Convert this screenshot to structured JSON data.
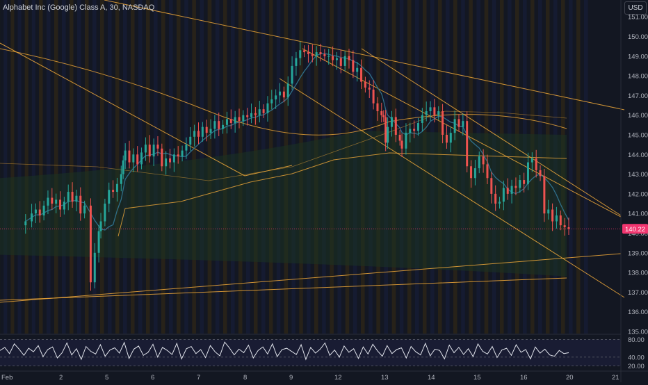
{
  "header": {
    "title": "Alphabet Inc (Google) Class A, 30, NASDAQ",
    "currency": "USD"
  },
  "colors": {
    "up": "#26a69a",
    "down": "#ef5350",
    "trendline": "#f0a93a",
    "ma": "#2f6f8a",
    "last_price_bg": "#f23670",
    "stripe_orange": "#2a2318",
    "stripe_blue": "#161c33",
    "rsi": "#e0e3eb"
  },
  "chart_data": [
    {
      "type": "candlestick",
      "title": "Alphabet Inc (Google) Class A, 30, NASDAQ",
      "y_unit": "USD",
      "ylim": [
        135,
        151.5
      ],
      "y_ticks": [
        "151.00",
        "150.00",
        "149.00",
        "148.00",
        "147.00",
        "146.00",
        "145.00",
        "144.00",
        "143.00",
        "142.00",
        "141.00",
        "140.00",
        "139.00",
        "138.00",
        "137.00",
        "136.00",
        "135.00"
      ],
      "x_ticks": [
        "Feb",
        "2",
        "5",
        "6",
        "7",
        "8",
        "9",
        "12",
        "13",
        "14",
        "15",
        "16",
        "20",
        "21"
      ],
      "last_price": "140.22",
      "grid": false,
      "price_path": [
        [
          0,
          140.4
        ],
        [
          0.3,
          140.6
        ],
        [
          0.6,
          141.0
        ],
        [
          0.8,
          141.2
        ],
        [
          1.0,
          140.9
        ],
        [
          1.2,
          141.4
        ],
        [
          1.4,
          141.8
        ],
        [
          1.6,
          141.5
        ],
        [
          1.8,
          141.7
        ],
        [
          2.0,
          141.2
        ],
        [
          2.2,
          141.6
        ],
        [
          2.4,
          142.1
        ],
        [
          2.6,
          141.6
        ],
        [
          2.8,
          141.9
        ],
        [
          3.0,
          141.0
        ],
        [
          3.2,
          141.4
        ],
        [
          3.5,
          137.5
        ],
        [
          3.7,
          139.0
        ],
        [
          3.9,
          140.1
        ],
        [
          4.0,
          140.6
        ],
        [
          4.2,
          141.5
        ],
        [
          4.4,
          142.2
        ],
        [
          4.6,
          142.1
        ],
        [
          4.8,
          142.5
        ],
        [
          5.0,
          143.0
        ],
        [
          5.1,
          143.7
        ],
        [
          5.2,
          144.2
        ],
        [
          5.4,
          143.6
        ],
        [
          5.6,
          144.0
        ],
        [
          5.8,
          143.5
        ],
        [
          6.0,
          144.1
        ],
        [
          6.2,
          144.5
        ],
        [
          6.4,
          143.9
        ],
        [
          6.6,
          144.5
        ],
        [
          6.8,
          144.3
        ],
        [
          7.0,
          143.4
        ],
        [
          7.2,
          143.8
        ],
        [
          7.4,
          143.6
        ],
        [
          7.6,
          144.0
        ],
        [
          7.8,
          143.9
        ],
        [
          8.0,
          144.2
        ],
        [
          8.2,
          144.5
        ],
        [
          8.4,
          144.9
        ],
        [
          8.6,
          145.2
        ],
        [
          8.8,
          144.9
        ],
        [
          9.0,
          145.4
        ],
        [
          9.2,
          145.1
        ],
        [
          9.4,
          145.3
        ],
        [
          9.6,
          145.7
        ],
        [
          9.8,
          145.3
        ],
        [
          10.0,
          145.5
        ],
        [
          10.2,
          145.8
        ],
        [
          10.4,
          145.6
        ],
        [
          10.6,
          145.9
        ],
        [
          10.8,
          145.7
        ],
        [
          11.0,
          146.0
        ],
        [
          11.2,
          145.9
        ],
        [
          11.4,
          146.1
        ],
        [
          11.6,
          146.0
        ],
        [
          11.8,
          146.3
        ],
        [
          12.0,
          146.1
        ],
        [
          12.2,
          146.6
        ],
        [
          12.4,
          146.8
        ],
        [
          12.6,
          147.0
        ],
        [
          12.8,
          147.2
        ],
        [
          13.0,
          146.9
        ],
        [
          13.2,
          147.6
        ],
        [
          13.4,
          148.5
        ],
        [
          13.6,
          148.9
        ],
        [
          13.8,
          149.3
        ],
        [
          14.0,
          149.2
        ],
        [
          14.2,
          149.1
        ],
        [
          14.4,
          149.0
        ],
        [
          14.6,
          149.2
        ],
        [
          14.8,
          149.1
        ],
        [
          15.0,
          149.0
        ],
        [
          15.2,
          149.0
        ],
        [
          15.4,
          148.8
        ],
        [
          15.6,
          148.9
        ],
        [
          15.8,
          148.5
        ],
        [
          16.0,
          149.0
        ],
        [
          16.2,
          148.8
        ],
        [
          16.4,
          148.2
        ],
        [
          16.6,
          148.4
        ],
        [
          16.8,
          147.7
        ],
        [
          17.0,
          147.4
        ],
        [
          17.2,
          147.3
        ],
        [
          17.4,
          146.6
        ],
        [
          17.6,
          146.2
        ],
        [
          17.8,
          146.0
        ],
        [
          17.9,
          145.9
        ],
        [
          18.0,
          144.6
        ],
        [
          18.1,
          145.4
        ],
        [
          18.3,
          145.9
        ],
        [
          18.5,
          145.0
        ],
        [
          18.7,
          144.7
        ],
        [
          18.8,
          144.3
        ],
        [
          19.0,
          145.1
        ],
        [
          19.2,
          145.3
        ],
        [
          19.4,
          145.2
        ],
        [
          19.6,
          145.6
        ],
        [
          19.8,
          146.0
        ],
        [
          20.0,
          146.2
        ],
        [
          20.2,
          146.4
        ],
        [
          20.4,
          146.0
        ],
        [
          20.6,
          146.2
        ],
        [
          20.8,
          145.0
        ],
        [
          21.0,
          144.6
        ],
        [
          21.2,
          145.1
        ],
        [
          21.4,
          145.8
        ],
        [
          21.6,
          145.4
        ],
        [
          21.8,
          145.7
        ],
        [
          22.0,
          143.4
        ],
        [
          22.2,
          142.8
        ],
        [
          22.4,
          143.3
        ],
        [
          22.6,
          143.9
        ],
        [
          22.8,
          143.5
        ],
        [
          23.0,
          142.8
        ],
        [
          23.2,
          142.0
        ],
        [
          23.4,
          141.5
        ],
        [
          23.6,
          141.6
        ],
        [
          23.8,
          142.3
        ],
        [
          24.0,
          142.0
        ],
        [
          24.2,
          142.4
        ],
        [
          24.4,
          142.3
        ],
        [
          24.6,
          142.7
        ],
        [
          24.8,
          142.5
        ],
        [
          25.0,
          143.6
        ],
        [
          25.2,
          143.8
        ],
        [
          25.4,
          143.2
        ],
        [
          25.6,
          142.9
        ],
        [
          25.8,
          141.0
        ],
        [
          26.0,
          141.2
        ],
        [
          26.2,
          140.6
        ],
        [
          26.4,
          140.9
        ],
        [
          26.6,
          140.4
        ],
        [
          26.8,
          140.3
        ],
        [
          27.0,
          140.22
        ]
      ],
      "rsi": {
        "ylim": [
          10,
          90
        ],
        "y_ticks": [
          "80.00",
          "40.00",
          "20.00"
        ],
        "values": [
          55,
          62,
          48,
          70,
          58,
          44,
          60,
          52,
          66,
          41,
          57,
          63,
          38,
          50,
          72,
          45,
          59,
          35,
          64,
          53,
          47,
          68,
          42,
          56,
          61,
          49,
          73,
          37,
          58,
          65,
          44,
          51,
          69,
          40,
          62,
          55,
          46,
          71,
          36,
          59,
          64,
          48,
          57,
          39,
          66,
          52,
          43,
          74,
          61,
          45,
          58,
          50,
          67,
          38,
          55,
          63,
          47,
          70,
          41,
          57,
          60,
          53,
          46,
          68,
          35,
          62,
          49,
          58,
          72,
          44,
          56,
          40,
          65,
          51,
          59,
          37,
          63,
          47,
          69,
          54,
          42,
          66,
          48,
          57,
          61,
          38,
          64,
          52,
          45,
          71,
          43,
          58,
          55,
          36,
          67,
          50,
          62,
          46,
          59,
          41,
          70,
          53,
          47,
          64,
          39,
          56,
          60,
          44,
          68,
          51,
          57,
          36,
          63,
          49,
          58,
          45,
          42,
          55,
          48,
          50
        ]
      }
    }
  ]
}
